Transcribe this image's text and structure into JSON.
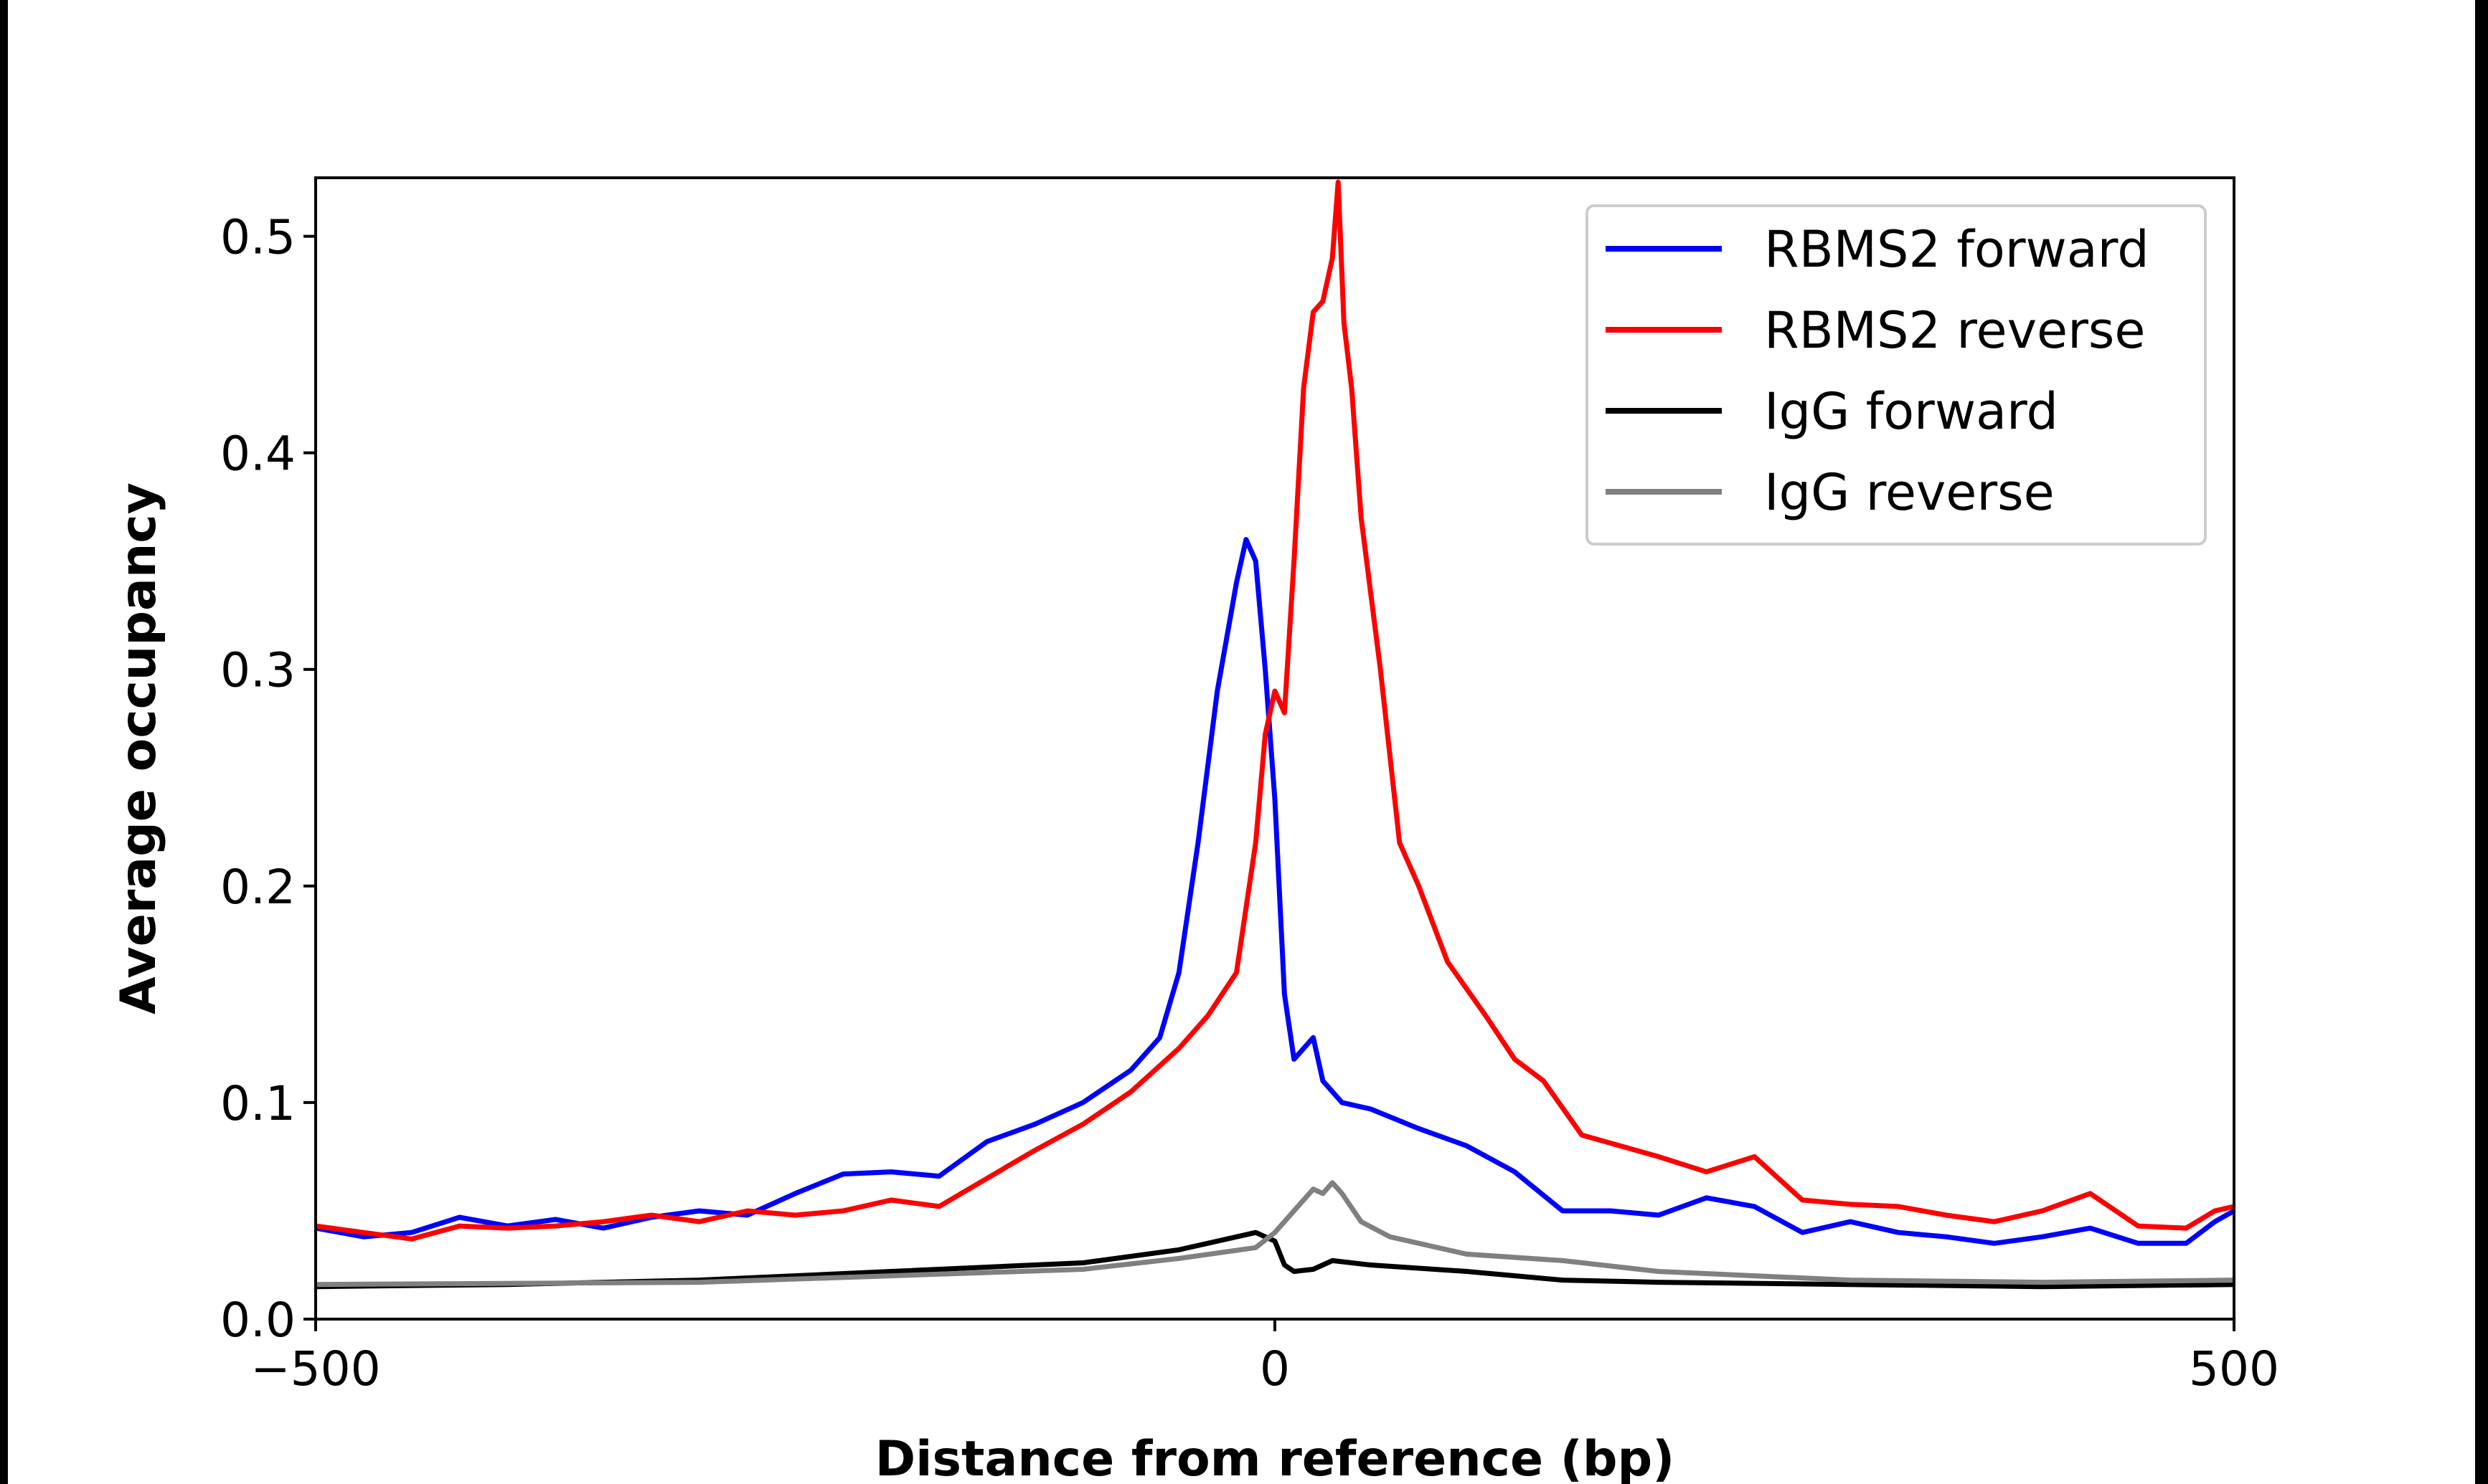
{
  "chart_data": {
    "type": "line",
    "xlabel": "Distance from reference (bp)",
    "ylabel": "Average occupancy",
    "xlim": [
      -500,
      500
    ],
    "ylim": [
      0,
      0.527
    ],
    "xticks": [
      -500,
      0,
      500
    ],
    "xtick_labels": [
      "−500",
      "0",
      "500"
    ],
    "yticks": [
      0.0,
      0.1,
      0.2,
      0.3,
      0.4,
      0.5
    ],
    "ytick_labels": [
      "0.0",
      "0.1",
      "0.2",
      "0.3",
      "0.4",
      "0.5"
    ],
    "grid": false,
    "legend_position": "top-right",
    "series": [
      {
        "name": "RBMS2 forward",
        "color": "#0000ff",
        "x": [
          -500,
          -475,
          -450,
          -425,
          -400,
          -375,
          -350,
          -325,
          -300,
          -275,
          -250,
          -225,
          -200,
          -175,
          -150,
          -125,
          -100,
          -75,
          -60,
          -50,
          -40,
          -30,
          -20,
          -15,
          -10,
          -5,
          0,
          5,
          10,
          15,
          20,
          25,
          35,
          50,
          75,
          100,
          125,
          150,
          175,
          200,
          225,
          250,
          275,
          300,
          325,
          350,
          375,
          400,
          425,
          450,
          475,
          490,
          500
        ],
        "y": [
          0.042,
          0.038,
          0.04,
          0.047,
          0.043,
          0.046,
          0.042,
          0.047,
          0.05,
          0.048,
          0.058,
          0.067,
          0.068,
          0.066,
          0.082,
          0.09,
          0.1,
          0.115,
          0.13,
          0.16,
          0.22,
          0.29,
          0.34,
          0.36,
          0.35,
          0.3,
          0.24,
          0.15,
          0.12,
          0.125,
          0.13,
          0.11,
          0.1,
          0.097,
          0.088,
          0.08,
          0.068,
          0.05,
          0.05,
          0.048,
          0.056,
          0.052,
          0.04,
          0.045,
          0.04,
          0.038,
          0.035,
          0.038,
          0.042,
          0.035,
          0.035,
          0.045,
          0.05
        ]
      },
      {
        "name": "RBMS2 reverse",
        "color": "#ff0000",
        "x": [
          -500,
          -475,
          -450,
          -425,
          -400,
          -375,
          -350,
          -325,
          -300,
          -275,
          -250,
          -225,
          -200,
          -175,
          -150,
          -125,
          -100,
          -75,
          -50,
          -35,
          -20,
          -10,
          -5,
          0,
          5,
          10,
          15,
          20,
          25,
          30,
          33,
          36,
          40,
          45,
          55,
          65,
          75,
          90,
          110,
          125,
          140,
          160,
          200,
          225,
          250,
          275,
          300,
          325,
          350,
          375,
          400,
          425,
          450,
          475,
          490,
          500
        ],
        "y": [
          0.043,
          0.04,
          0.037,
          0.043,
          0.042,
          0.043,
          0.045,
          0.048,
          0.045,
          0.05,
          0.048,
          0.05,
          0.055,
          0.052,
          0.065,
          0.078,
          0.09,
          0.105,
          0.125,
          0.14,
          0.16,
          0.22,
          0.27,
          0.29,
          0.28,
          0.35,
          0.43,
          0.465,
          0.47,
          0.49,
          0.525,
          0.46,
          0.43,
          0.37,
          0.3,
          0.22,
          0.2,
          0.165,
          0.14,
          0.12,
          0.11,
          0.085,
          0.075,
          0.068,
          0.075,
          0.055,
          0.053,
          0.052,
          0.048,
          0.045,
          0.05,
          0.058,
          0.043,
          0.042,
          0.05,
          0.052
        ]
      },
      {
        "name": "IgG forward",
        "color": "#000000",
        "x": [
          -500,
          -400,
          -300,
          -200,
          -100,
          -50,
          -10,
          0,
          5,
          10,
          20,
          30,
          50,
          100,
          150,
          200,
          300,
          400,
          500
        ],
        "y": [
          0.015,
          0.016,
          0.018,
          0.022,
          0.026,
          0.032,
          0.04,
          0.036,
          0.025,
          0.022,
          0.023,
          0.027,
          0.025,
          0.022,
          0.018,
          0.017,
          0.016,
          0.015,
          0.016
        ]
      },
      {
        "name": "IgG reverse",
        "color": "#808080",
        "x": [
          -500,
          -300,
          -200,
          -100,
          -50,
          -10,
          0,
          10,
          20,
          25,
          30,
          35,
          45,
          60,
          100,
          150,
          200,
          250,
          300,
          400,
          500
        ],
        "y": [
          0.016,
          0.017,
          0.02,
          0.023,
          0.028,
          0.033,
          0.04,
          0.05,
          0.06,
          0.058,
          0.063,
          0.058,
          0.045,
          0.038,
          0.03,
          0.027,
          0.022,
          0.02,
          0.018,
          0.017,
          0.018
        ]
      }
    ]
  }
}
